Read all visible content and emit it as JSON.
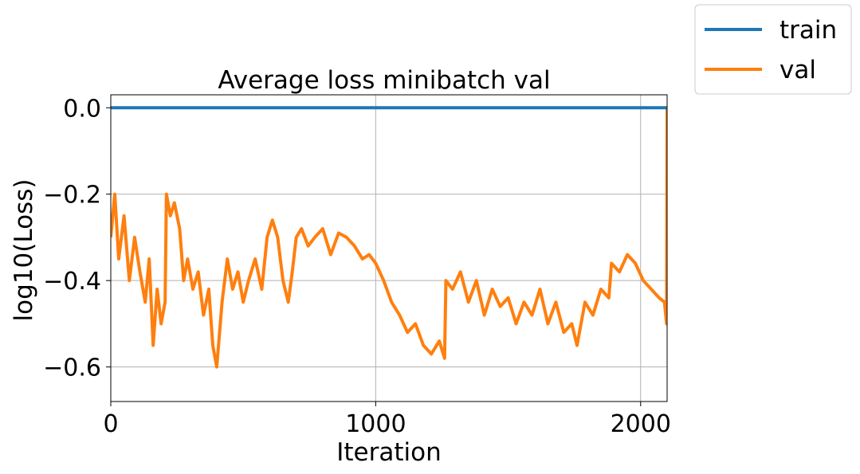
{
  "chart_data": {
    "type": "line",
    "title": "Average loss minibatch val",
    "xlabel": "Iteration",
    "ylabel": "log10(Loss)",
    "xlim": [
      0,
      2100
    ],
    "ylim": [
      -0.68,
      0.03
    ],
    "xticks": [
      0,
      1000,
      2000
    ],
    "xtick_labels": [
      "0",
      "1000",
      "2000"
    ],
    "yticks": [
      0.0,
      -0.2,
      -0.4,
      -0.6
    ],
    "ytick_labels": [
      "0.0",
      "−0.2",
      "−0.4",
      "−0.6"
    ],
    "grid": true,
    "legend_position": "outside-top-right",
    "series": [
      {
        "name": "train",
        "color": "#1f77b4",
        "x": [
          0,
          2100
        ],
        "y": [
          0.0,
          0.0
        ]
      },
      {
        "name": "val",
        "color": "#ff7f0e",
        "x": [
          0,
          15,
          30,
          50,
          70,
          90,
          110,
          130,
          145,
          160,
          175,
          190,
          205,
          210,
          225,
          240,
          260,
          275,
          290,
          310,
          330,
          350,
          370,
          385,
          400,
          420,
          440,
          460,
          480,
          500,
          520,
          545,
          570,
          590,
          610,
          630,
          650,
          670,
          685,
          700,
          720,
          745,
          770,
          800,
          830,
          860,
          890,
          920,
          950,
          975,
          1000,
          1030,
          1060,
          1090,
          1120,
          1150,
          1180,
          1210,
          1240,
          1260,
          1265,
          1290,
          1320,
          1350,
          1380,
          1410,
          1440,
          1470,
          1500,
          1530,
          1560,
          1590,
          1620,
          1650,
          1680,
          1710,
          1740,
          1760,
          1790,
          1820,
          1850,
          1880,
          1890,
          1920,
          1950,
          1980,
          2010,
          2040,
          2070,
          2090,
          2098,
          2100
        ],
        "y": [
          -0.3,
          -0.2,
          -0.35,
          -0.25,
          -0.4,
          -0.3,
          -0.38,
          -0.45,
          -0.35,
          -0.55,
          -0.42,
          -0.5,
          -0.45,
          -0.2,
          -0.25,
          -0.22,
          -0.28,
          -0.4,
          -0.35,
          -0.42,
          -0.38,
          -0.48,
          -0.42,
          -0.55,
          -0.6,
          -0.45,
          -0.35,
          -0.42,
          -0.38,
          -0.45,
          -0.4,
          -0.35,
          -0.42,
          -0.3,
          -0.26,
          -0.3,
          -0.4,
          -0.45,
          -0.38,
          -0.3,
          -0.28,
          -0.32,
          -0.3,
          -0.28,
          -0.34,
          -0.29,
          -0.3,
          -0.32,
          -0.35,
          -0.34,
          -0.36,
          -0.4,
          -0.45,
          -0.48,
          -0.52,
          -0.5,
          -0.55,
          -0.57,
          -0.54,
          -0.58,
          -0.4,
          -0.42,
          -0.38,
          -0.45,
          -0.4,
          -0.48,
          -0.42,
          -0.46,
          -0.44,
          -0.5,
          -0.45,
          -0.48,
          -0.42,
          -0.5,
          -0.45,
          -0.52,
          -0.5,
          -0.55,
          -0.45,
          -0.48,
          -0.42,
          -0.44,
          -0.36,
          -0.38,
          -0.34,
          -0.36,
          -0.4,
          -0.42,
          -0.44,
          -0.45,
          -0.5,
          0.0
        ]
      }
    ]
  }
}
